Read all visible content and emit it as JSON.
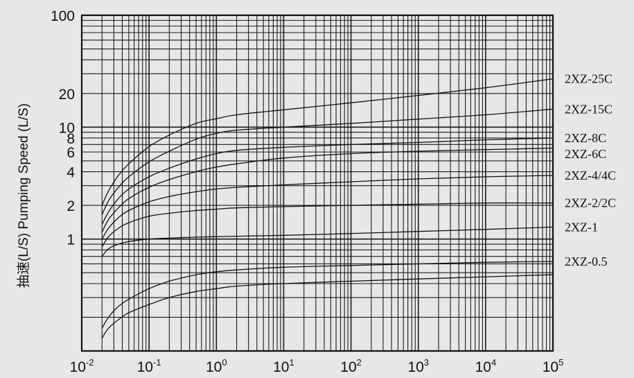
{
  "chart_data": {
    "type": "line",
    "title": "",
    "ylabel": "抽速(L/S) Pumping Speed (L/S)",
    "xlabel": "",
    "x_scale": "log",
    "y_scale": "log",
    "xlim": [
      0.01,
      100000
    ],
    "ylim": [
      0.1,
      100
    ],
    "grid": true,
    "y_tick_labels": [
      {
        "value": 100,
        "label": "100"
      },
      {
        "value": 20,
        "label": "20"
      },
      {
        "value": 10,
        "label": "10"
      },
      {
        "value": 8,
        "label": "8"
      },
      {
        "value": 6,
        "label": "6"
      },
      {
        "value": 4,
        "label": "4"
      },
      {
        "value": 2,
        "label": "2"
      },
      {
        "value": 1,
        "label": "1"
      }
    ],
    "x_tick_labels": [
      {
        "value": 0.01,
        "base": "10",
        "exp": "-2"
      },
      {
        "value": 0.1,
        "base": "10",
        "exp": "-1"
      },
      {
        "value": 1,
        "base": "10",
        "exp": "0"
      },
      {
        "value": 10,
        "base": "10",
        "exp": "1"
      },
      {
        "value": 100,
        "base": "10",
        "exp": "2"
      },
      {
        "value": 1000,
        "base": "10",
        "exp": "3"
      },
      {
        "value": 10000,
        "base": "10",
        "exp": "4"
      },
      {
        "value": 100000,
        "base": "10",
        "exp": "5"
      }
    ],
    "series": [
      {
        "name": "2XZ-25C",
        "x": [
          0.02,
          0.025,
          0.035,
          0.05,
          0.1,
          0.2,
          0.5,
          1,
          2,
          10,
          100,
          1000,
          10000,
          100000
        ],
        "y": [
          2.0,
          2.7,
          3.7,
          4.7,
          6.7,
          8.5,
          10.8,
          11.9,
          12.9,
          14.3,
          16.5,
          19.2,
          22.5,
          27.0
        ]
      },
      {
        "name": "2XZ-15C",
        "x": [
          0.02,
          0.025,
          0.035,
          0.05,
          0.1,
          0.2,
          0.5,
          1,
          2,
          10,
          100,
          1000,
          10000,
          100000
        ],
        "y": [
          1.65,
          2.2,
          2.9,
          3.6,
          4.9,
          6.1,
          7.8,
          8.8,
          9.4,
          10.0,
          10.8,
          11.8,
          12.9,
          14.5
        ]
      },
      {
        "name": "2XZ-8C",
        "x": [
          0.02,
          0.025,
          0.035,
          0.05,
          0.1,
          0.2,
          0.5,
          1,
          2,
          10,
          100,
          1000,
          10000,
          100000
        ],
        "y": [
          1.35,
          1.75,
          2.3,
          2.8,
          3.6,
          4.3,
          5.2,
          5.8,
          6.2,
          6.6,
          7.0,
          7.3,
          7.7,
          8.0
        ]
      },
      {
        "name": "2XZ-6C",
        "x": [
          0.02,
          0.025,
          0.035,
          0.05,
          0.1,
          0.2,
          0.5,
          1,
          2,
          10,
          100,
          1000,
          10000,
          100000
        ],
        "y": [
          1.15,
          1.5,
          1.9,
          2.3,
          2.9,
          3.4,
          4.0,
          4.4,
          4.7,
          5.3,
          5.8,
          6.1,
          6.3,
          6.5
        ]
      },
      {
        "name": "2XZ-4/4C",
        "x": [
          0.02,
          0.025,
          0.035,
          0.05,
          0.1,
          0.2,
          0.5,
          1,
          2,
          10,
          100,
          1000,
          10000,
          100000
        ],
        "y": [
          1.0,
          1.25,
          1.55,
          1.8,
          2.15,
          2.4,
          2.65,
          2.8,
          2.9,
          3.05,
          3.25,
          3.45,
          3.6,
          3.7
        ]
      },
      {
        "name": "2XZ-2/2C",
        "x": [
          0.02,
          0.025,
          0.035,
          0.05,
          0.1,
          0.2,
          0.5,
          1,
          2,
          10,
          100,
          1000,
          10000,
          100000
        ],
        "y": [
          0.85,
          1.05,
          1.25,
          1.4,
          1.6,
          1.7,
          1.8,
          1.85,
          1.9,
          1.95,
          2.0,
          2.05,
          2.1,
          2.1
        ]
      },
      {
        "name": "2XZ-1",
        "x": [
          0.02,
          0.025,
          0.035,
          0.05,
          0.1,
          0.2,
          0.5,
          1,
          2,
          10,
          100,
          1000,
          10000,
          100000
        ],
        "y": [
          0.7,
          0.82,
          0.9,
          0.95,
          1.0,
          1.02,
          1.04,
          1.05,
          1.06,
          1.08,
          1.12,
          1.17,
          1.22,
          1.28
        ]
      },
      {
        "name": "2XZ-0.5",
        "x": [
          0.02,
          0.025,
          0.035,
          0.05,
          0.1,
          0.2,
          0.5,
          1,
          2,
          10,
          100,
          1000,
          10000,
          100000
        ],
        "y": [
          0.16,
          0.2,
          0.25,
          0.29,
          0.36,
          0.42,
          0.48,
          0.51,
          0.53,
          0.56,
          0.58,
          0.6,
          0.62,
          0.63
        ]
      },
      {
        "name": "",
        "x": [
          0.02,
          0.025,
          0.035,
          0.05,
          0.1,
          0.2,
          0.5,
          1,
          2,
          10,
          100,
          1000,
          10000,
          100000
        ],
        "y": [
          0.13,
          0.16,
          0.19,
          0.22,
          0.26,
          0.3,
          0.34,
          0.36,
          0.38,
          0.4,
          0.42,
          0.44,
          0.46,
          0.48
        ]
      }
    ]
  }
}
